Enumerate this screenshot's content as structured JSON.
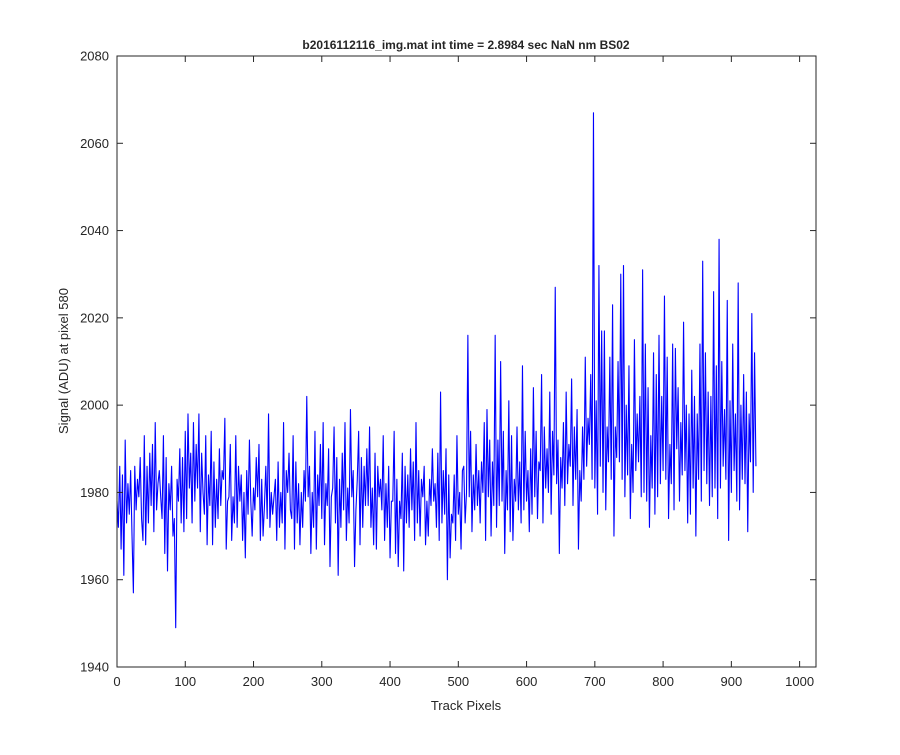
{
  "chart_data": {
    "type": "line",
    "title": "b2016112116_img.mat int time = 2.8984 sec  NaN nm BS02",
    "xlabel": "Track Pixels",
    "ylabel": "Signal (ADU) at pixel 580",
    "xlim": [
      0,
      1024
    ],
    "ylim": [
      1940,
      2080
    ],
    "xticks": [
      0,
      100,
      200,
      300,
      400,
      500,
      600,
      700,
      800,
      900,
      1000
    ],
    "yticks": [
      1940,
      1960,
      1980,
      2000,
      2020,
      2040,
      2060,
      2080
    ],
    "grid": false,
    "legend": "none",
    "series": [
      {
        "color": "#0000ff",
        "x_start": 0,
        "x_step": 2,
        "values": [
          1978,
          1972,
          1986,
          1967,
          1984,
          1961,
          1992,
          1973,
          1982,
          1975,
          1985,
          1970,
          1957,
          1986,
          1976,
          1983,
          1979,
          1988,
          1974,
          1969,
          1993,
          1968,
          1986,
          1973,
          1989,
          1977,
          1991,
          1971,
          1996,
          1976,
          1982,
          1985,
          1979,
          1974,
          1993,
          1966,
          1988,
          1962,
          1982,
          1976,
          1986,
          1970,
          1974,
          1949,
          1983,
          1978,
          1990,
          1973,
          1988,
          1971,
          1994,
          1974,
          1998,
          1981,
          1989,
          1973,
          1996,
          1978,
          1991,
          1981,
          1998,
          1971,
          1989,
          1980,
          1975,
          1993,
          1968,
          1984,
          1977,
          1994,
          1968,
          1987,
          1972,
          1983,
          1974,
          1990,
          1977,
          1985,
          1983,
          1997,
          1967,
          1978,
          1979,
          1991,
          1969,
          1979,
          1973,
          1993,
          1972,
          1986,
          1978,
          1984,
          1969,
          1980,
          1965,
          1985,
          1975,
          1992,
          1978,
          1970,
          1981,
          1976,
          1988,
          1979,
          1991,
          1969,
          1983,
          1970,
          1977,
          1986,
          1974,
          1998,
          1972,
          1980,
          1975,
          1979,
          1983,
          1969,
          1987,
          1972,
          1980,
          1973,
          1996,
          1967,
          1985,
          1980,
          1989,
          1976,
          1974,
          1993,
          1967,
          1987,
          1973,
          1982,
          1968,
          1980,
          1972,
          1985,
          1978,
          2002,
          1979,
          1986,
          1966,
          1980,
          1972,
          1994,
          1967,
          1984,
          1977,
          1991,
          1974,
          1996,
          1968,
          1982,
          1977,
          1990,
          1963,
          1979,
          1981,
          1995,
          1973,
          1988,
          1961,
          1983,
          1972,
          1989,
          1976,
          1996,
          1969,
          1981,
          1973,
          1999,
          1979,
          1985,
          1963,
          1976,
          1983,
          1994,
          1968,
          1988,
          1972,
          1986,
          1977,
          1990,
          1977,
          1995,
          1972,
          1981,
          1968,
          1989,
          1967,
          1986,
          1979,
          1983,
          1976,
          1993,
          1969,
          1982,
          1972,
          1986,
          1965,
          1978,
          1978,
          1994,
          1966,
          1983,
          1963,
          1978,
          1974,
          1989,
          1962,
          1986,
          1973,
          1984,
          1972,
          1990,
          1976,
          1987,
          1969,
          1996,
          1973,
          1985,
          1970,
          1983,
          1979,
          1986,
          1968,
          1978,
          1970,
          1983,
          1977,
          1990,
          1978,
          1982,
          1972,
          1989,
          1969,
          2003,
          1973,
          1985,
          1975,
          1990,
          1960,
          1984,
          1965,
          1975,
          1973,
          1984,
          1969,
          1993,
          1975,
          1980,
          1967,
          1985,
          1986,
          1973,
          1980,
          2016,
          1979,
          1994,
          1971,
          1984,
          1976,
          1991,
          1977,
          1985,
          1973,
          1987,
          1980,
          1996,
          1969,
          1999,
          1979,
          1992,
          1970,
          1987,
          1977,
          2016,
          1972,
          1992,
          1977,
          2010,
          1978,
          1994,
          1966,
          1985,
          1976,
          2001,
          1971,
          1993,
          1969,
          1983,
          1978,
          1995,
          1976,
          1987,
          1973,
          2009,
          1976,
          1994,
          1978,
          1985,
          1971,
          1990,
          1975,
          2004,
          1979,
          1994,
          1974,
          1987,
          1985,
          2007,
          1973,
          1995,
          1981,
          1990,
          1980,
          2003,
          1975,
          1994,
          1984,
          2027,
          1982,
          1992,
          1966,
          1988,
          1981,
          1996,
          1977,
          2003,
          1982,
          1991,
          1986,
          2006,
          1977,
          1995,
          1983,
          1999,
          1967,
          1985,
          1978,
          1995,
          1983,
          2011,
          1986,
          1997,
          1991,
          2007,
          1983,
          2067,
          1981,
          2001,
          1975,
          2032,
          1986,
          2017,
          1980,
          2017,
          1976,
          1995,
          1987,
          2011,
          1983,
          2023,
          1970,
          1995,
          1988,
          2010,
          1987,
          2030,
          1983,
          2032,
          1979,
          2000,
          1984,
          2009,
          1974,
          1991,
          1980,
          2015,
          1985,
          1998,
          1987,
          2002,
          1979,
          2031,
          1980,
          2014,
          1978,
          2004,
          1972,
          1993,
          1981,
          2012,
          1975,
          2007,
          1979,
          2016,
          1982,
          2002,
          1985,
          2025,
          1983,
          2011,
          1974,
          1991,
          1982,
          2014,
          1976,
          2013,
          1990,
          2004,
          1978,
          1996,
          1984,
          2019,
          1985,
          2000,
          1973,
          1998,
          1975,
          2008,
          1981,
          2002,
          1970,
          1998,
          1983,
          2014,
          1978,
          2033,
          1985,
          2012,
          1982,
          2003,
          1977,
          2002,
          1979,
          2026,
          1981,
          2009,
          1974,
          2038,
          1981,
          2010,
          1986,
          1999,
          1983,
          2024,
          1969,
          2001,
          1980,
          2014,
          1985,
          1998,
          1978,
          2028,
          1976,
          2000,
          1983,
          2007,
          1982,
          2003,
          1971,
          1998,
          1987,
          2021,
          1980,
          2012,
          1986
        ]
      }
    ]
  }
}
